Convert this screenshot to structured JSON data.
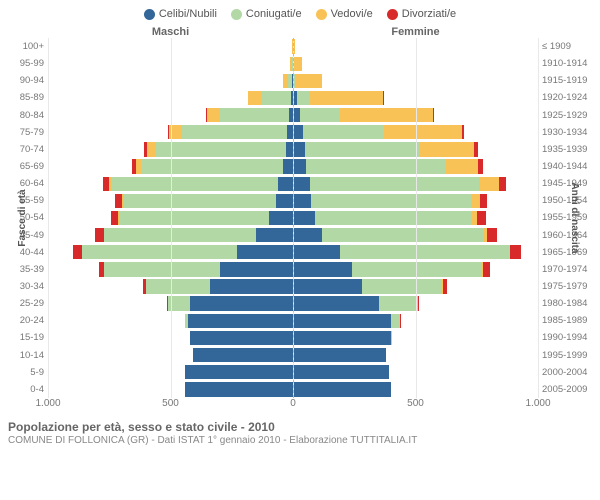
{
  "legend": [
    {
      "label": "Celibi/Nubili",
      "color": "#336699"
    },
    {
      "label": "Coniugati/e",
      "color": "#b2d8a5"
    },
    {
      "label": "Vedovi/e",
      "color": "#f8c256"
    },
    {
      "label": "Divorziati/e",
      "color": "#d82a2a"
    }
  ],
  "header_left": "Maschi",
  "header_right": "Femmine",
  "axis_left": "Fasce di età",
  "axis_right": "Anni di nascita",
  "title": "Popolazione per età, sesso e stato civile - 2010",
  "subtitle": "COMUNE DI FOLLONICA (GR) - Dati ISTAT 1° gennaio 2010 - Elaborazione TUTTITALIA.IT",
  "x_max": 1000,
  "x_ticks": [
    {
      "label": "1.000",
      "val": -1000
    },
    {
      "label": "500",
      "val": -500
    },
    {
      "label": "0",
      "val": 0
    },
    {
      "label": "500",
      "val": 500
    },
    {
      "label": "1.000",
      "val": 1000
    }
  ],
  "rows": [
    {
      "age": "100+",
      "birth": "≤ 1909",
      "m": [
        0,
        0,
        3,
        0
      ],
      "f": [
        0,
        0,
        8,
        0
      ]
    },
    {
      "age": "95-99",
      "birth": "1910-1914",
      "m": [
        2,
        3,
        6,
        0
      ],
      "f": [
        1,
        1,
        35,
        0
      ]
    },
    {
      "age": "90-94",
      "birth": "1915-1919",
      "m": [
        4,
        18,
        20,
        0
      ],
      "f": [
        4,
        5,
        110,
        0
      ]
    },
    {
      "age": "85-89",
      "birth": "1920-1924",
      "m": [
        10,
        120,
        55,
        0
      ],
      "f": [
        18,
        50,
        300,
        2
      ]
    },
    {
      "age": "80-84",
      "birth": "1925-1929",
      "m": [
        18,
        280,
        55,
        3
      ],
      "f": [
        30,
        160,
        380,
        6
      ]
    },
    {
      "age": "75-79",
      "birth": "1930-1934",
      "m": [
        25,
        430,
        50,
        6
      ],
      "f": [
        40,
        330,
        320,
        10
      ]
    },
    {
      "age": "70-74",
      "birth": "1935-1939",
      "m": [
        30,
        530,
        35,
        12
      ],
      "f": [
        50,
        470,
        220,
        14
      ]
    },
    {
      "age": "65-69",
      "birth": "1940-1944",
      "m": [
        40,
        580,
        22,
        15
      ],
      "f": [
        55,
        570,
        130,
        20
      ]
    },
    {
      "age": "60-64",
      "birth": "1945-1949",
      "m": [
        60,
        680,
        12,
        25
      ],
      "f": [
        70,
        690,
        80,
        30
      ]
    },
    {
      "age": "55-59",
      "birth": "1950-1954",
      "m": [
        70,
        620,
        8,
        30
      ],
      "f": [
        75,
        650,
        38,
        30
      ]
    },
    {
      "age": "50-54",
      "birth": "1955-1959",
      "m": [
        100,
        610,
        5,
        30
      ],
      "f": [
        90,
        640,
        22,
        35
      ]
    },
    {
      "age": "45-49",
      "birth": "1960-1964",
      "m": [
        150,
        620,
        3,
        35
      ],
      "f": [
        120,
        660,
        12,
        40
      ]
    },
    {
      "age": "40-44",
      "birth": "1965-1969",
      "m": [
        230,
        630,
        2,
        35
      ],
      "f": [
        190,
        690,
        7,
        45
      ]
    },
    {
      "age": "35-39",
      "birth": "1970-1974",
      "m": [
        300,
        470,
        1,
        22
      ],
      "f": [
        240,
        530,
        4,
        30
      ]
    },
    {
      "age": "30-34",
      "birth": "1975-1979",
      "m": [
        340,
        260,
        0,
        12
      ],
      "f": [
        280,
        330,
        2,
        15
      ]
    },
    {
      "age": "25-29",
      "birth": "1980-1984",
      "m": [
        420,
        90,
        0,
        3
      ],
      "f": [
        350,
        160,
        1,
        5
      ]
    },
    {
      "age": "20-24",
      "birth": "1985-1989",
      "m": [
        430,
        10,
        0,
        0
      ],
      "f": [
        400,
        35,
        0,
        1
      ]
    },
    {
      "age": "15-19",
      "birth": "1990-1994",
      "m": [
        420,
        0,
        0,
        0
      ],
      "f": [
        400,
        2,
        0,
        0
      ]
    },
    {
      "age": "10-14",
      "birth": "1995-1999",
      "m": [
        410,
        0,
        0,
        0
      ],
      "f": [
        380,
        0,
        0,
        0
      ]
    },
    {
      "age": "5-9",
      "birth": "2000-2004",
      "m": [
        440,
        0,
        0,
        0
      ],
      "f": [
        390,
        0,
        0,
        0
      ]
    },
    {
      "age": "0-4",
      "birth": "2005-2009",
      "m": [
        440,
        0,
        0,
        0
      ],
      "f": [
        400,
        0,
        0,
        0
      ]
    }
  ]
}
